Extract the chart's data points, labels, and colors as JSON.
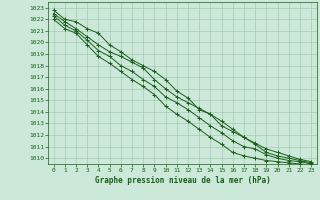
{
  "title": "",
  "xlabel": "Graphe pression niveau de la mer (hPa)",
  "ylabel": "",
  "bg_color": "#cce8d8",
  "grid_color": "#99c4aa",
  "line_color": "#1a5e1a",
  "marker_color": "#1a5e1a",
  "xlim": [
    -0.5,
    23.5
  ],
  "ylim": [
    1009.5,
    1023.5
  ],
  "yticks": [
    1010,
    1011,
    1012,
    1013,
    1014,
    1015,
    1016,
    1017,
    1018,
    1019,
    1020,
    1021,
    1022,
    1023
  ],
  "xticks": [
    0,
    1,
    2,
    3,
    4,
    5,
    6,
    7,
    8,
    9,
    10,
    11,
    12,
    13,
    14,
    15,
    16,
    17,
    18,
    19,
    20,
    21,
    22,
    23
  ],
  "series": [
    [
      1022.8,
      1022.0,
      1021.8,
      1021.2,
      1020.8,
      1019.8,
      1019.2,
      1018.5,
      1018.0,
      1017.5,
      1016.8,
      1015.8,
      1015.2,
      1014.2,
      1013.8,
      1012.8,
      1012.3,
      1011.8,
      1011.3,
      1010.8,
      1010.5,
      1010.2,
      1009.9,
      1009.7
    ],
    [
      1022.5,
      1021.8,
      1021.2,
      1020.5,
      1019.8,
      1019.2,
      1018.8,
      1018.3,
      1017.8,
      1016.8,
      1016.0,
      1015.3,
      1014.8,
      1014.3,
      1013.8,
      1013.2,
      1012.5,
      1011.8,
      1011.2,
      1010.5,
      1010.2,
      1010.0,
      1009.8,
      1009.6
    ],
    [
      1022.3,
      1021.5,
      1021.0,
      1020.2,
      1019.3,
      1018.8,
      1018.0,
      1017.5,
      1016.8,
      1016.2,
      1015.3,
      1014.8,
      1014.2,
      1013.5,
      1012.8,
      1012.2,
      1011.5,
      1011.0,
      1010.8,
      1010.3,
      1010.0,
      1009.8,
      1009.7,
      1009.5
    ],
    [
      1022.0,
      1021.2,
      1020.8,
      1019.8,
      1018.8,
      1018.2,
      1017.5,
      1016.8,
      1016.2,
      1015.5,
      1014.5,
      1013.8,
      1013.2,
      1012.5,
      1011.8,
      1011.2,
      1010.5,
      1010.2,
      1010.0,
      1009.8,
      1009.7,
      1009.6,
      1009.5,
      1009.4
    ]
  ]
}
